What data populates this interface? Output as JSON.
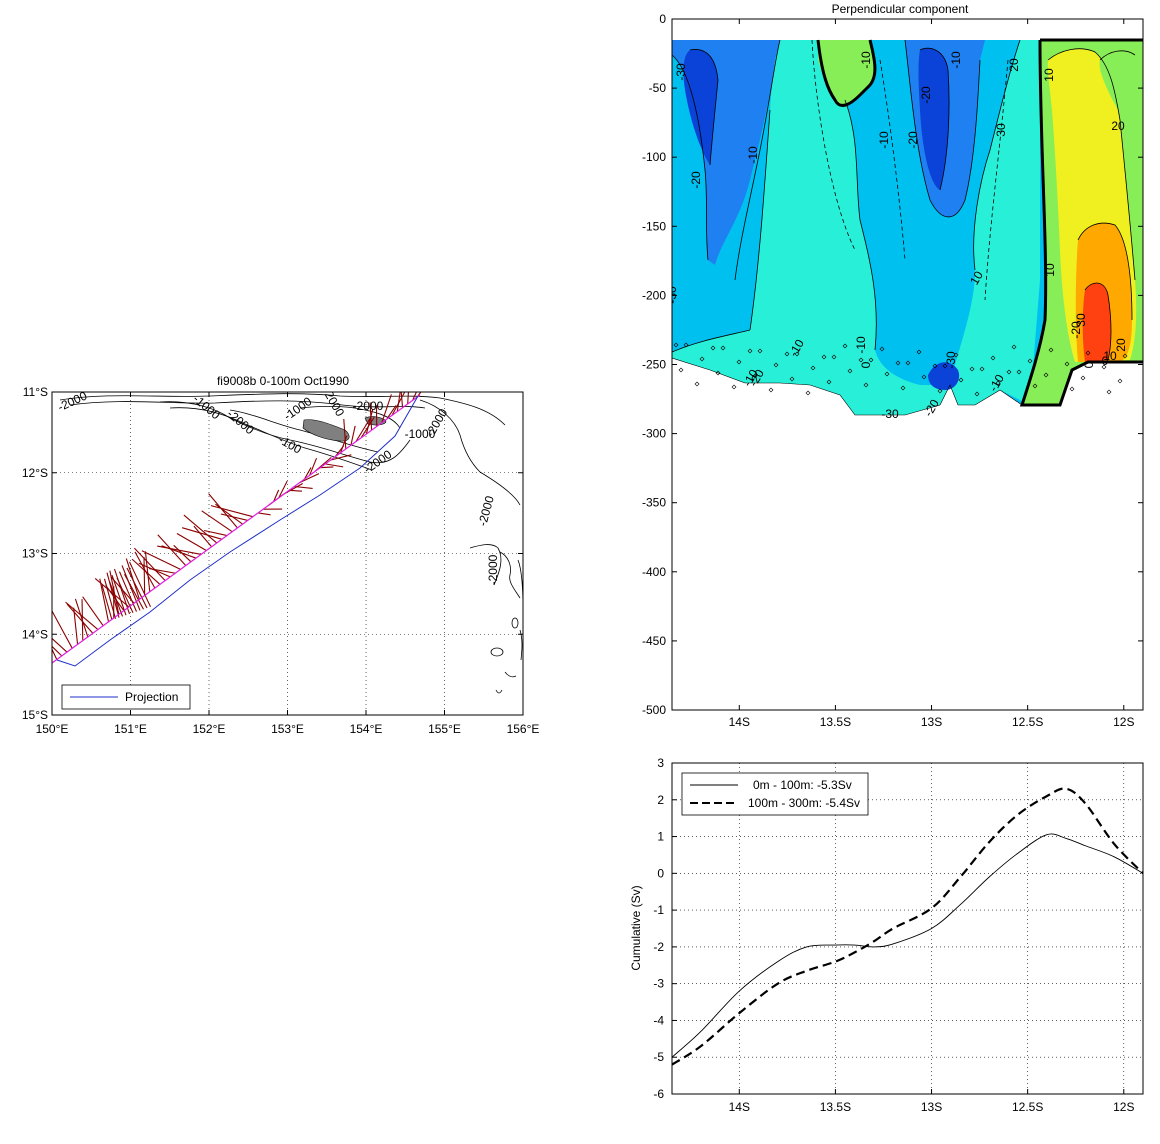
{
  "map": {
    "title": "fi9008b 0-100m Oct1990",
    "xticks": [
      "150°E",
      "151°E",
      "152°E",
      "153°E",
      "154°E",
      "155°E",
      "156°E"
    ],
    "xtick_values": [
      150,
      151,
      152,
      153,
      154,
      155,
      156
    ],
    "yticks": [
      "11°S",
      "12°S",
      "13°S",
      "14°S",
      "15°S"
    ],
    "ytick_values": [
      -11,
      -12,
      -13,
      -14,
      -15
    ],
    "legend": "Projection",
    "contour_labels": [
      "-2000",
      "-1000",
      "-1000",
      "-2000",
      "-100",
      "-2000",
      "-2000",
      "-1000",
      "-2000",
      "-2000",
      "-2000",
      "-2000"
    ],
    "colors": {
      "track": "#1f2fc8",
      "projection": "#e01ee0",
      "vectors": "#8b0000",
      "island": "#808080"
    }
  },
  "chart_data": [
    {
      "type": "heatmap",
      "title": "Perpendicular component",
      "xlabel": "",
      "ylabel": "",
      "xlim": [
        -14.35,
        -11.9
      ],
      "ylim": [
        -500,
        0
      ],
      "xticks": [
        -14,
        -13.5,
        -13,
        -12.5,
        -12
      ],
      "xtick_labels": [
        "14S",
        "13.5S",
        "13S",
        "12.5S",
        "12S"
      ],
      "yticks": [
        0,
        -50,
        -100,
        -150,
        -200,
        -250,
        -300,
        -350,
        -400,
        -450,
        -500
      ],
      "ytick_labels": [
        "0",
        "-50",
        "-100",
        "-150",
        "-200",
        "-250",
        "-300",
        "-350",
        "-400",
        "-450",
        "-500"
      ],
      "contour_levels": [
        -30,
        -20,
        -10,
        0,
        10,
        20,
        30
      ],
      "contour_labels": [
        "-30",
        "-20",
        "-10",
        "0",
        "-20",
        "-10",
        "-10",
        "-30",
        "-20",
        "-30",
        "-10",
        "-10",
        "-20",
        "-10",
        "10",
        "-10",
        "20",
        "30",
        "10",
        "-20",
        "0",
        "10",
        "0",
        "10",
        "30",
        "20",
        "-10",
        "-30",
        "-20",
        "20"
      ],
      "colors": {
        "le_-20": "#0b43d8",
        "-20_-10": "#1f80f2",
        "-10_0": "#00c0f0",
        "0_10": "#28f0d8",
        "10_20": "#88ee58",
        "20_30": "#f0f020",
        "30_40": "#ffa800",
        "40+": "#ff4010"
      }
    },
    {
      "type": "line",
      "xlabel": "",
      "ylabel": "Cumulative (Sv)",
      "xlim": [
        -14.35,
        -11.9
      ],
      "ylim": [
        -6,
        3
      ],
      "xticks": [
        -14,
        -13.5,
        -13,
        -12.5,
        -12
      ],
      "xtick_labels": [
        "14S",
        "13.5S",
        "13S",
        "12.5S",
        "12S"
      ],
      "yticks": [
        3,
        2,
        1,
        0,
        -1,
        -2,
        -3,
        -4,
        -5,
        -6
      ],
      "ytick_labels": [
        "3",
        "2",
        "1",
        "0",
        "-1",
        "-2",
        "-3",
        "-4",
        "-5",
        "-6"
      ],
      "grid": true,
      "legend_position": "top-left",
      "series": [
        {
          "name": "0m - 100m: -5.3Sv",
          "style": "solid",
          "x": [
            -14.35,
            -14.2,
            -14.0,
            -13.8,
            -13.65,
            -13.5,
            -13.4,
            -13.3,
            -13.2,
            -13.0,
            -12.85,
            -12.7,
            -12.55,
            -12.4,
            -12.3,
            -12.2,
            -12.05,
            -11.9
          ],
          "y": [
            -5.0,
            -4.3,
            -3.2,
            -2.4,
            -2.0,
            -1.95,
            -1.95,
            -2.0,
            -1.92,
            -1.5,
            -0.85,
            -0.1,
            0.55,
            1.05,
            0.95,
            0.75,
            0.45,
            0.0
          ]
        },
        {
          "name": "100m - 300m: -5.4Sv",
          "style": "dashed",
          "x": [
            -14.35,
            -14.2,
            -14.0,
            -13.8,
            -13.65,
            -13.5,
            -13.4,
            -13.3,
            -13.2,
            -13.0,
            -12.85,
            -12.7,
            -12.55,
            -12.4,
            -12.3,
            -12.2,
            -12.05,
            -11.9
          ],
          "y": [
            -5.2,
            -4.7,
            -3.8,
            -3.0,
            -2.65,
            -2.4,
            -2.15,
            -1.85,
            -1.5,
            -0.95,
            -0.1,
            0.85,
            1.6,
            2.1,
            2.3,
            1.9,
            0.8,
            0.0
          ]
        }
      ]
    }
  ]
}
